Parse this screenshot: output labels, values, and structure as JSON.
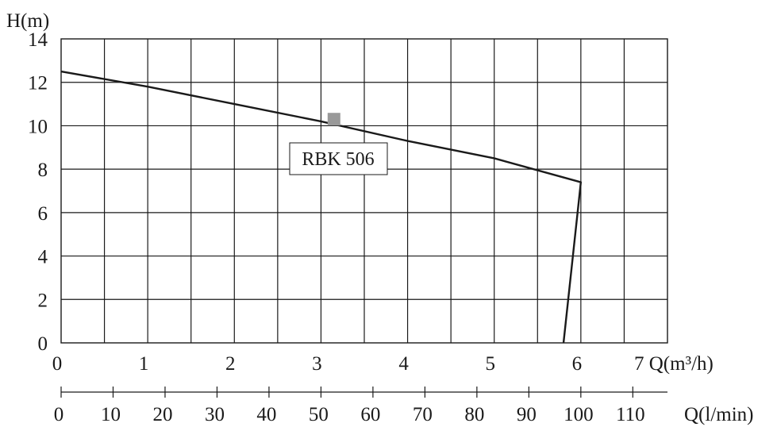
{
  "chart_data": {
    "type": "line",
    "y_axis": {
      "title": "H(m)",
      "ticks": [
        0,
        2,
        4,
        6,
        8,
        10,
        12,
        14
      ],
      "range": [
        0,
        14
      ]
    },
    "x_axis_primary": {
      "title": "Q(m³/h)",
      "unit_label": "7 Q(m³/h)",
      "ticks": [
        "0",
        "1",
        "2",
        "3",
        "4",
        "5",
        "6"
      ],
      "range": [
        0,
        7
      ]
    },
    "x_axis_secondary": {
      "title": "Q(l/min)",
      "ticks": [
        "0",
        "10",
        "20",
        "30",
        "40",
        "50",
        "60",
        "70",
        "80",
        "90",
        "100",
        "110"
      ],
      "range": [
        0,
        116.67
      ]
    },
    "grid": true,
    "series": [
      {
        "name": "RBK 506",
        "x": [
          0,
          1,
          2,
          3,
          4,
          5,
          6,
          5.8
        ],
        "y": [
          12.5,
          11.8,
          11.0,
          10.2,
          9.3,
          8.5,
          7.4,
          0
        ]
      }
    ],
    "annotation": {
      "label": "RBK 506",
      "marker": {
        "x": 3.15,
        "y": 10.3
      },
      "marker_color": "#999999"
    }
  }
}
